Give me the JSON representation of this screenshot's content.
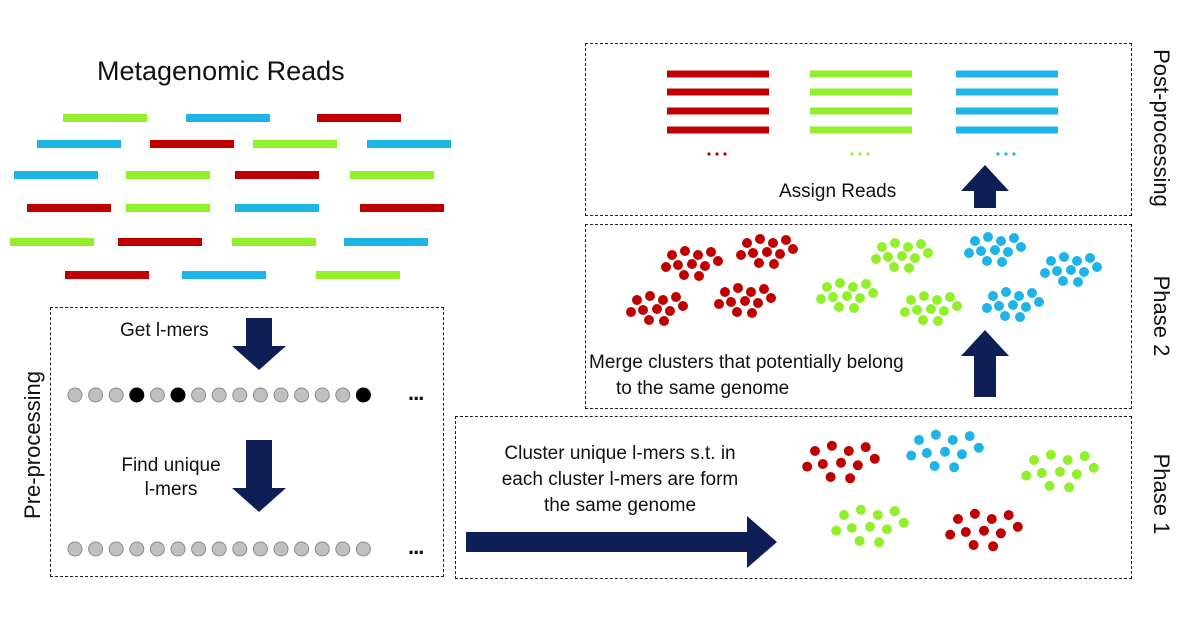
{
  "title": "Metagenomic Reads",
  "colors": {
    "red": "#c00000",
    "green": "#92f02a",
    "blue": "#1eb4e8",
    "arrow": "#0d1f55",
    "kmer_gray": "#c0c0c0",
    "kmer_black": "#000000"
  },
  "preprocessing": {
    "label": "Pre-processing",
    "step1": "Get l-mers",
    "step2_line1": "Find unique",
    "step2_line2": "l-mers",
    "ellipsis": "..."
  },
  "phase1": {
    "label": "Phase 1",
    "text_line1": "Cluster unique l-mers s.t. in",
    "text_line2": "each cluster l-mers are form",
    "text_line3": "the same genome"
  },
  "phase2": {
    "label": "Phase 2",
    "text_line1": "Merge clusters that potentially belong",
    "text_line2": "to the same genome"
  },
  "postprocessing": {
    "label": "Post-processing",
    "text": "Assign Reads",
    "ellipsis": "..."
  }
}
